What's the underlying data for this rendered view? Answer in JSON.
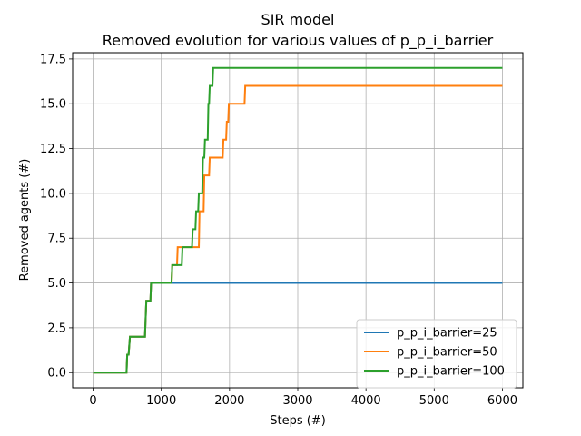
{
  "chart_data": {
    "type": "line",
    "title": "SIR model",
    "subtitle": "Removed evolution for various values of p_p_i_barrier",
    "xlabel": "Steps (#)",
    "ylabel": "Removed agents (#)",
    "xlim": [
      -300,
      6300
    ],
    "ylim": [
      -0.85,
      17.85
    ],
    "xticks": [
      0,
      1000,
      2000,
      3000,
      4000,
      5000,
      6000
    ],
    "yticks": [
      0.0,
      2.5,
      5.0,
      7.5,
      10.0,
      12.5,
      15.0,
      17.5
    ],
    "xtick_labels": [
      "0",
      "1000",
      "2000",
      "3000",
      "4000",
      "5000",
      "6000"
    ],
    "ytick_labels": [
      "0.0",
      "2.5",
      "5.0",
      "7.5",
      "10.0",
      "12.5",
      "15.0",
      "17.5"
    ],
    "grid": true,
    "legend_position": "lower-right",
    "series": [
      {
        "name": "p_p_i_barrier=25",
        "color": "#1f77b4",
        "x": [
          0,
          490,
          500,
          520,
          540,
          760,
          770,
          780,
          840,
          850,
          6000
        ],
        "y": [
          0,
          0,
          1,
          1,
          2,
          2,
          3,
          4,
          4,
          5,
          5
        ]
      },
      {
        "name": "p_p_i_barrier=50",
        "color": "#ff7f0e",
        "x": [
          0,
          490,
          500,
          520,
          540,
          760,
          770,
          780,
          840,
          850,
          1150,
          1160,
          1230,
          1240,
          1300,
          1310,
          1550,
          1560,
          1620,
          1630,
          1700,
          1710,
          1900,
          1910,
          1950,
          1960,
          1980,
          1990,
          2220,
          2230,
          6000
        ],
        "y": [
          0,
          0,
          1,
          1,
          2,
          2,
          3,
          4,
          4,
          5,
          5,
          6,
          6,
          7,
          7,
          7,
          7,
          9,
          9,
          11,
          11,
          12,
          12,
          13,
          13,
          14,
          14,
          15,
          15,
          16,
          16
        ]
      },
      {
        "name": "p_p_i_barrier=100",
        "color": "#2ca02c",
        "x": [
          0,
          490,
          500,
          520,
          540,
          760,
          770,
          780,
          840,
          850,
          1150,
          1160,
          1300,
          1310,
          1450,
          1460,
          1500,
          1510,
          1540,
          1550,
          1600,
          1610,
          1630,
          1640,
          1680,
          1690,
          1700,
          1710,
          1750,
          1760,
          6000
        ],
        "y": [
          0,
          0,
          1,
          1,
          2,
          2,
          3,
          4,
          4,
          5,
          5,
          6,
          6,
          7,
          7,
          8,
          8,
          9,
          9,
          10,
          10,
          12,
          12,
          13,
          13,
          15,
          15,
          16,
          16,
          17,
          17
        ]
      }
    ]
  }
}
